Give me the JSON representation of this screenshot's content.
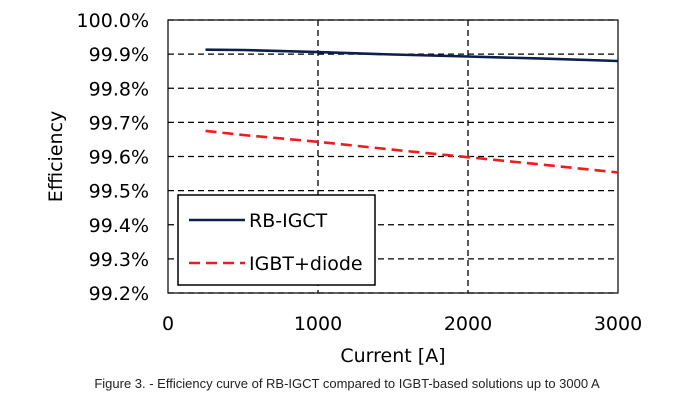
{
  "chart_data": {
    "type": "line",
    "xlabel": "Current [A]",
    "ylabel": "Efficiency",
    "xlim": [
      0,
      3000
    ],
    "ylim": [
      99.2,
      100.0
    ],
    "x_ticks": [
      0,
      1000,
      2000,
      3000
    ],
    "x_tick_labels": [
      "0",
      "1000",
      "2000",
      "3000"
    ],
    "y_ticks": [
      99.2,
      99.3,
      99.4,
      99.5,
      99.6,
      99.7,
      99.8,
      99.9,
      100.0
    ],
    "y_tick_labels": [
      "99.2%",
      "99.3%",
      "99.4%",
      "99.5%",
      "99.6%",
      "99.7%",
      "99.8%",
      "99.9%",
      "100.0%"
    ],
    "grid": true,
    "grid_style": "dashed",
    "legend_position": "bottom-left",
    "series": [
      {
        "name": "RB-IGCT",
        "color": "#0d1f4d",
        "line_style": "solid",
        "x": [
          250,
          500,
          1000,
          1500,
          2000,
          2500,
          3000
        ],
        "y": [
          99.913,
          99.912,
          99.906,
          99.899,
          99.893,
          99.887,
          99.88
        ]
      },
      {
        "name": "IGBT+diode",
        "color": "#ee1c1c",
        "line_style": "dashed",
        "x": [
          250,
          500,
          1000,
          1500,
          2000,
          2500,
          3000
        ],
        "y": [
          99.675,
          99.663,
          99.643,
          99.62,
          99.598,
          99.576,
          99.553
        ]
      }
    ]
  },
  "caption": "Figure 3. - Efficiency curve of RB-IGCT compared to IGBT-based solutions up to 3000 A"
}
